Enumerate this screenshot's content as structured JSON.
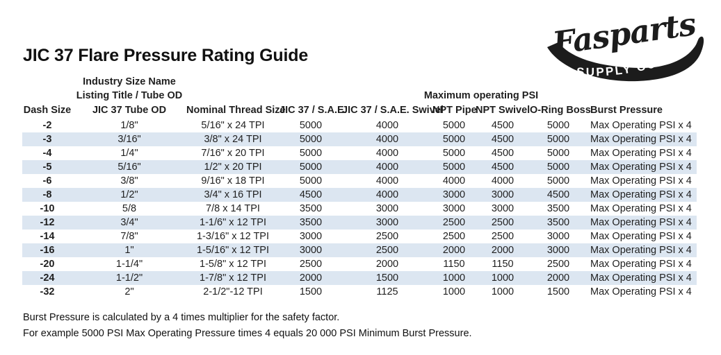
{
  "title": "JIC 37 Flare Pressure Rating Guide",
  "logo": {
    "brand": "Fasparts",
    "subtitle": "SUPPLY CO."
  },
  "table": {
    "industry_header_line1": "Industry Size Name",
    "industry_header_line2": "Listing Title / Tube OD",
    "psi_group_header": "Maximum operating PSI",
    "columns": [
      "Dash Size",
      "JIC 37 Tube OD",
      "Nominal Thread Size",
      "JIC 37 / S.A.E.",
      "JIC 37 / S.A.E. Swivel",
      "NPT Pipe",
      "NPT Swivel",
      "O-Ring Boss",
      "Burst Pressure"
    ],
    "column_keys": [
      "dash-size",
      "jic37-tube-od",
      "nominal-thread-size",
      "jic37-sae",
      "jic37-sae-swivel",
      "npt-pipe",
      "npt-swivel",
      "o-ring-boss",
      "burst-pressure"
    ],
    "rows": [
      [
        "-2",
        "1/8\"",
        "5/16\" x 24 TPI",
        "5000",
        "4000",
        "5000",
        "4500",
        "5000",
        "Max Operating PSI x 4"
      ],
      [
        "-3",
        "3/16\"",
        "3/8\" x 24 TPI",
        "5000",
        "4000",
        "5000",
        "4500",
        "5000",
        "Max Operating PSI x 4"
      ],
      [
        "-4",
        "1/4\"",
        "7/16\" x 20 TPI",
        "5000",
        "4000",
        "5000",
        "4500",
        "5000",
        "Max Operating PSI x 4"
      ],
      [
        "-5",
        "5/16\"",
        "1/2\" x 20 TPI",
        "5000",
        "4000",
        "5000",
        "4500",
        "5000",
        "Max Operating PSI x 4"
      ],
      [
        "-6",
        "3/8\"",
        "9/16\" x 18 TPI",
        "5000",
        "4000",
        "4000",
        "4000",
        "5000",
        "Max Operating PSI x 4"
      ],
      [
        "-8",
        "1/2\"",
        "3/4\" x 16 TPI",
        "4500",
        "4000",
        "3000",
        "3000",
        "4500",
        "Max Operating PSI x 4"
      ],
      [
        "-10",
        "5/8",
        "7/8 x 14 TPI",
        "3500",
        "3000",
        "3000",
        "3000",
        "3500",
        "Max Operating PSI x 4"
      ],
      [
        "-12",
        "3/4\"",
        "1-1/6\" x 12 TPI",
        "3500",
        "3000",
        "2500",
        "2500",
        "3500",
        "Max Operating PSI x 4"
      ],
      [
        "-14",
        "7/8\"",
        "1-3/16\" x 12 TPI",
        "3000",
        "2500",
        "2500",
        "2500",
        "3000",
        "Max Operating PSI x 4"
      ],
      [
        "-16",
        "1\"",
        "1-5/16\" x 12 TPI",
        "3000",
        "2500",
        "2000",
        "2000",
        "3000",
        "Max Operating PSI x 4"
      ],
      [
        "-20",
        "1-1/4\"",
        "1-5/8\" x 12 TPI",
        "2500",
        "2000",
        "1150",
        "1150",
        "2500",
        "Max Operating PSI x 4"
      ],
      [
        "-24",
        "1-1/2\"",
        "1-7/8\" x 12 TPI",
        "2000",
        "1500",
        "1000",
        "1000",
        "2000",
        "Max Operating PSI x 4"
      ],
      [
        "-32",
        "2\"",
        "2-1/2\"-12 TPI",
        "1500",
        "1125",
        "1000",
        "1000",
        "1500",
        "Max Operating PSI x 4"
      ]
    ]
  },
  "notes": {
    "line1": "Burst Pressure is calculated by a 4 times multiplier for the safety factor.",
    "line2": "For example 5000 PSI Max Operating Pressure times 4 equals 20 000 PSI Minimum Burst Pressure."
  },
  "colors": {
    "row_shade": "#dce6f1",
    "text": "#1f1f1f",
    "logo_ink": "#1c1c1c"
  }
}
